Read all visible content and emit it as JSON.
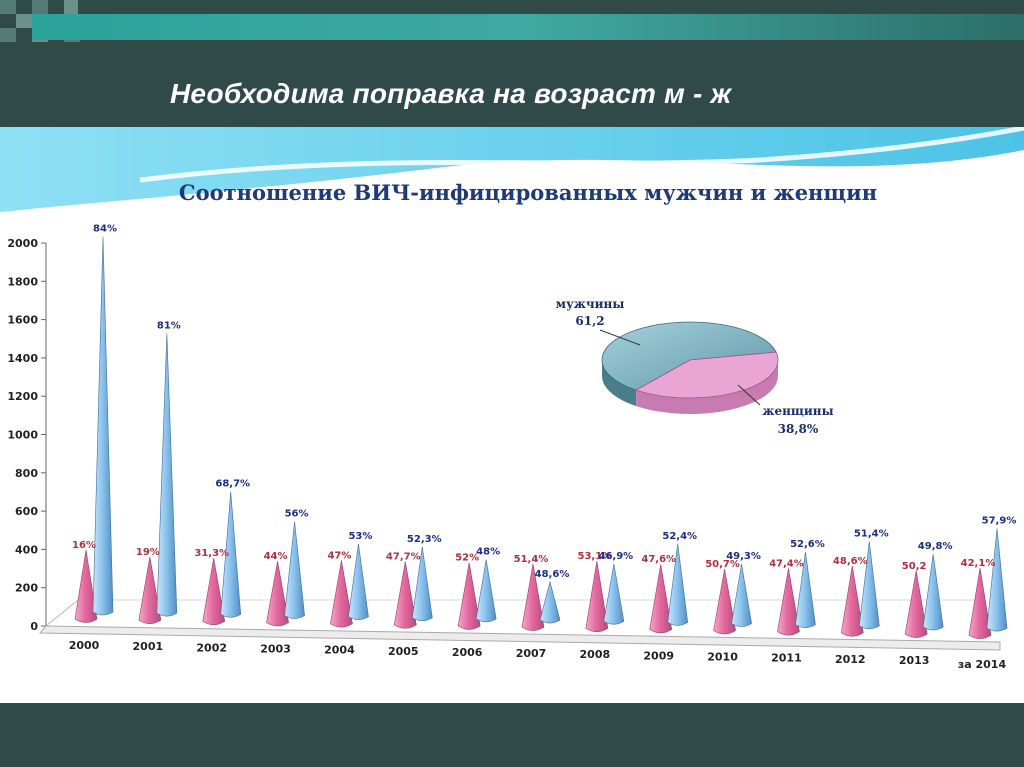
{
  "slide": {
    "title": "Необходима поправка на возраст  м - ж"
  },
  "colors": {
    "header_bg": "#2f4a47",
    "women": "#e46aa0",
    "men": "#8ec4ee",
    "pie_men": "#7fb3c4",
    "pie_women": "#e9a6d4"
  },
  "chart_data": [
    {
      "type": "bar",
      "title": "Соотношение ВИЧ-инфицированных мужчин и женщин",
      "categories": [
        "2000",
        "2001",
        "2002",
        "2003",
        "2004",
        "2005",
        "2006",
        "2007",
        "2008",
        "2009",
        "2010",
        "2011",
        "2012",
        "2013",
        "за 2014"
      ],
      "series": [
        {
          "values": [
            360,
            330,
            330,
            320,
            330,
            330,
            330,
            330,
            350,
            340,
            320,
            330,
            350,
            330,
            350
          ],
          "labels": [
            "16%",
            "19%",
            "31,3%",
            "44%",
            "47%",
            "47,7%",
            "52%",
            "51,4%",
            "53,1%",
            "47,6%",
            "50,7%",
            "47,4%",
            "48,6%",
            "50,2",
            "42,1%"
          ]
        },
        {
          "values": [
            1960,
            1460,
            640,
            490,
            380,
            370,
            310,
            200,
            300,
            410,
            310,
            380,
            440,
            380,
            520
          ],
          "labels": [
            "84%",
            "81%",
            "68,7%",
            "56%",
            "53%",
            "52,3%",
            "48%",
            "48,6%",
            "46,9%",
            "52,4%",
            "49,3%",
            "52,6%",
            "51,4%",
            "49,8%",
            "57,9%"
          ]
        }
      ],
      "yticks": [
        "0",
        "200",
        "400",
        "600",
        "800",
        "1000",
        "1200",
        "1400",
        "1600",
        "1800",
        "2000"
      ],
      "ylim": [
        0,
        2000
      ],
      "style": "3d-cones"
    },
    {
      "type": "pie",
      "slices": [
        {
          "name": "мужчины",
          "value": 61.2,
          "label_value": "61,2"
        },
        {
          "name": "женщины",
          "value": 38.8,
          "label_value": "38,8%"
        }
      ],
      "style": "3d"
    }
  ]
}
